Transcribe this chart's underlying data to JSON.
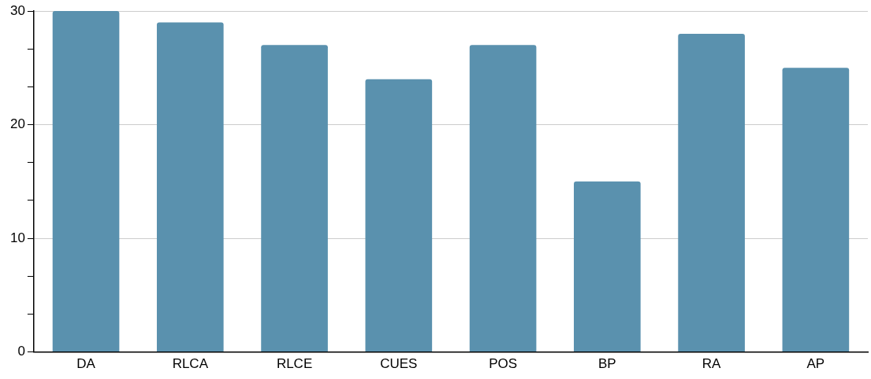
{
  "chart_data": {
    "type": "bar",
    "categories": [
      "DA",
      "RLCA",
      "RLCE",
      "CUES",
      "POS",
      "BP",
      "RA",
      "AP"
    ],
    "values": [
      30,
      29,
      27,
      24,
      27,
      15,
      28,
      25
    ],
    "color": "#5a91ae",
    "ylim": [
      0,
      30
    ],
    "yticks": [
      0,
      {
        "value": 3.33,
        "label": null
      },
      {
        "value": 6.67,
        "label": null
      },
      10,
      {
        "value": 13.33,
        "label": null
      },
      {
        "value": 16.67,
        "label": null
      },
      20,
      {
        "value": 23.33,
        "label": null
      },
      {
        "value": 26.67,
        "label": null
      },
      30
    ],
    "grid": "y",
    "legend": false
  }
}
